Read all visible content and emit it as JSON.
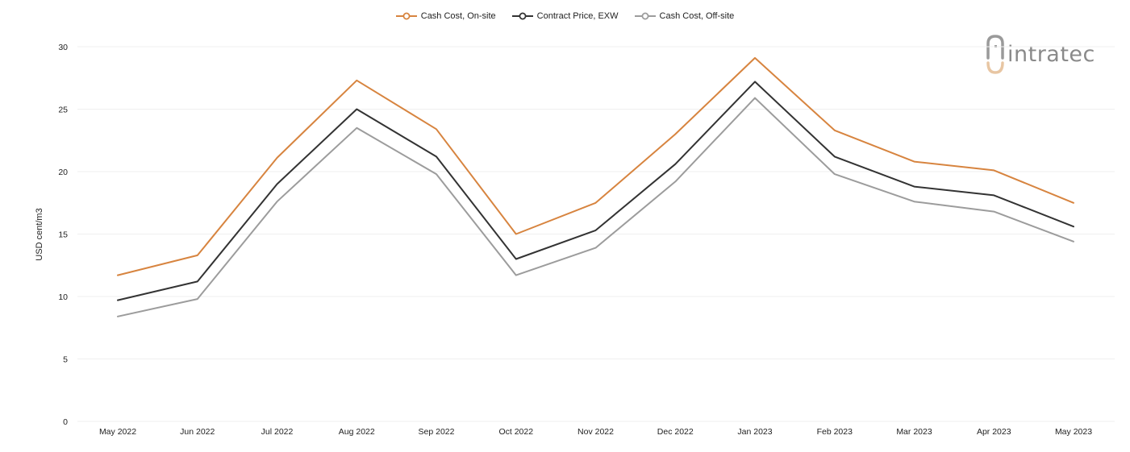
{
  "colors": {
    "on_site": "#d7843f",
    "contract": "#333333",
    "off_site": "#9c9c9c",
    "grid": "#efefef"
  },
  "logo": {
    "text": "intratec",
    "icon": "intratec-logo-icon"
  },
  "chart_data": {
    "type": "line",
    "title": "",
    "xlabel": "",
    "ylabel": "USD cent/m3",
    "ylim": [
      0,
      30
    ],
    "yticks": [
      0,
      5,
      10,
      15,
      20,
      25,
      30
    ],
    "grid": true,
    "legend_position": "top-center",
    "categories": [
      "May 2022",
      "Jun 2022",
      "Jul 2022",
      "Aug 2022",
      "Sep 2022",
      "Oct 2022",
      "Nov 2022",
      "Dec 2022",
      "Jan 2023",
      "Feb 2023",
      "Mar 2023",
      "Apr 2023",
      "May 2023"
    ],
    "series": [
      {
        "name": "Cash Cost, On-site",
        "color": "#d7843f",
        "values": [
          11.7,
          13.3,
          21.1,
          27.3,
          23.4,
          15.0,
          17.5,
          23.0,
          29.1,
          23.3,
          20.8,
          20.1,
          17.5
        ]
      },
      {
        "name": "Contract Price, EXW",
        "color": "#333333",
        "values": [
          9.7,
          11.2,
          19.0,
          25.0,
          21.2,
          13.0,
          15.3,
          20.6,
          27.2,
          21.2,
          18.8,
          18.1,
          15.6
        ]
      },
      {
        "name": "Cash Cost, Off-site",
        "color": "#9c9c9c",
        "values": [
          8.4,
          9.8,
          17.6,
          23.5,
          19.8,
          11.7,
          13.9,
          19.2,
          25.9,
          19.8,
          17.6,
          16.8,
          14.4
        ]
      }
    ]
  }
}
